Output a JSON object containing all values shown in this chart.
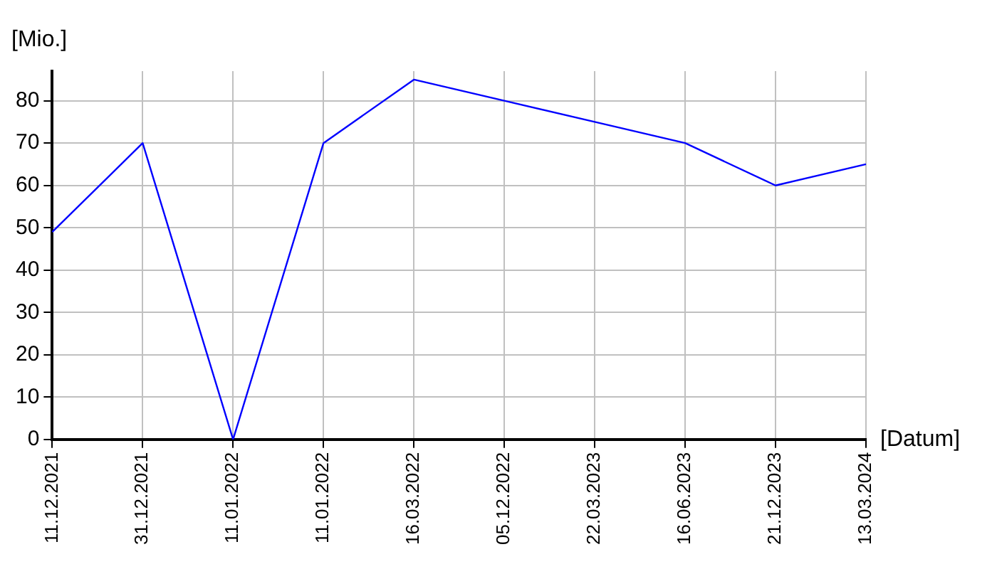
{
  "chart_data": {
    "type": "line",
    "ylabel": "[Mio.]",
    "xlabel": "[Datum]",
    "categories": [
      "11.12.2021",
      "31.12.2021",
      "11.01.2022",
      "11.01.2022",
      "16.03.2022",
      "05.12.2022",
      "22.03.2023",
      "16.06.2023",
      "21.12.2023",
      "13.03.2024"
    ],
    "series": [
      {
        "color": "#0000ff",
        "values": [
          49,
          70,
          0,
          70,
          85,
          80,
          75,
          70,
          60,
          65
        ]
      }
    ],
    "ylim": [
      0,
      87
    ],
    "yticks": [
      0,
      10,
      20,
      30,
      40,
      50,
      60,
      70,
      80
    ],
    "grid": true,
    "legend": false,
    "marker": "none",
    "line_style": "solid"
  }
}
